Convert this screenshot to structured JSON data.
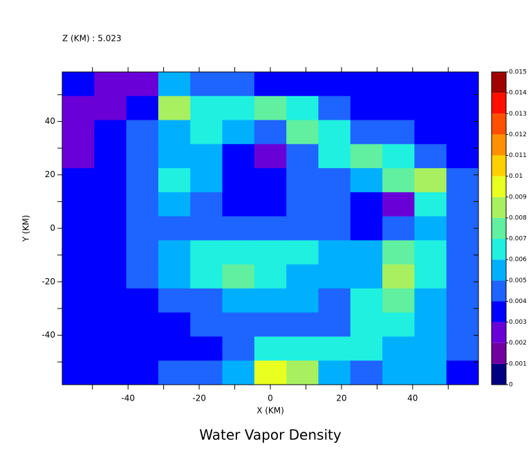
{
  "chart_data": {
    "type": "contour",
    "title": "Water Vapor Density",
    "subtitle": "Z (KM) : 5.023",
    "x_label": "X (KM)",
    "y_label": "Y (KM)",
    "x": [
      -54,
      -45,
      -36,
      -27,
      -18,
      -9,
      0,
      9,
      18,
      27,
      36,
      45,
      54
    ],
    "y": [
      54,
      45,
      36,
      27,
      18,
      9,
      0,
      -9,
      -18,
      -27,
      -36,
      -45,
      -54
    ],
    "z": [
      [
        0.0035,
        0.0025,
        0.0025,
        0.0055,
        0.0045,
        0.0045,
        0.0035,
        0.0035,
        0.0035,
        0.0035,
        0.0035,
        0.0035,
        0.0035
      ],
      [
        0.0025,
        0.0025,
        0.0035,
        0.0085,
        0.0065,
        0.0065,
        0.0075,
        0.0065,
        0.0045,
        0.0035,
        0.0035,
        0.0035,
        0.0035
      ],
      [
        0.0025,
        0.0035,
        0.0045,
        0.0055,
        0.0065,
        0.0055,
        0.0045,
        0.0075,
        0.0065,
        0.0045,
        0.0045,
        0.0035,
        0.0035
      ],
      [
        0.0025,
        0.0035,
        0.0045,
        0.0055,
        0.0055,
        0.0035,
        0.0025,
        0.0045,
        0.0065,
        0.0075,
        0.0065,
        0.0045,
        0.0035
      ],
      [
        0.0035,
        0.0035,
        0.0045,
        0.0065,
        0.0055,
        0.0035,
        0.0035,
        0.0045,
        0.0045,
        0.0055,
        0.0075,
        0.0085,
        0.0045
      ],
      [
        0.0035,
        0.0035,
        0.0045,
        0.0055,
        0.0045,
        0.0035,
        0.0035,
        0.0045,
        0.0045,
        0.0035,
        0.0025,
        0.0065,
        0.0045
      ],
      [
        0.0035,
        0.0035,
        0.0045,
        0.0045,
        0.0045,
        0.0045,
        0.0045,
        0.0045,
        0.0045,
        0.0035,
        0.0045,
        0.0055,
        0.0045
      ],
      [
        0.0035,
        0.0035,
        0.0045,
        0.0055,
        0.0065,
        0.0065,
        0.0065,
        0.0065,
        0.0055,
        0.0055,
        0.0075,
        0.0065,
        0.0045
      ],
      [
        0.0035,
        0.0035,
        0.0045,
        0.0055,
        0.0065,
        0.0075,
        0.0065,
        0.0055,
        0.0055,
        0.0055,
        0.0085,
        0.0065,
        0.0045
      ],
      [
        0.0035,
        0.0035,
        0.0035,
        0.0045,
        0.0045,
        0.0055,
        0.0055,
        0.0055,
        0.0045,
        0.0065,
        0.0075,
        0.0055,
        0.0045
      ],
      [
        0.0035,
        0.0035,
        0.0035,
        0.0035,
        0.0045,
        0.0045,
        0.0045,
        0.0045,
        0.0045,
        0.0065,
        0.0065,
        0.0055,
        0.0045
      ],
      [
        0.0035,
        0.0035,
        0.0035,
        0.0035,
        0.0035,
        0.0045,
        0.0065,
        0.0065,
        0.0065,
        0.0065,
        0.0055,
        0.0055,
        0.0045
      ],
      [
        0.0035,
        0.0035,
        0.0035,
        0.0045,
        0.0045,
        0.0055,
        0.0095,
        0.0085,
        0.0055,
        0.0045,
        0.0055,
        0.0055,
        0.0035
      ]
    ],
    "xlim": [
      -58.5,
      58.5
    ],
    "ylim": [
      -58.5,
      58.5
    ],
    "xticks": [
      -40,
      -20,
      0,
      20,
      40
    ],
    "yticks": [
      -40,
      -20,
      0,
      20,
      40
    ],
    "xminorticks": [
      -50,
      -30,
      -10,
      10,
      30,
      50
    ],
    "yminorticks": [
      -50,
      -30,
      -10,
      10,
      30,
      50
    ],
    "levels": [
      0,
      0.001,
      0.002,
      0.003,
      0.004,
      0.005,
      0.006,
      0.007,
      0.008,
      0.009,
      0.01,
      0.011,
      0.012,
      0.013,
      0.014,
      0.015
    ],
    "colors": [
      "#000080",
      "#7000a0",
      "#6a00d8",
      "#0000ff",
      "#1e64ff",
      "#00b0ff",
      "#20f0e0",
      "#60f0a0",
      "#a8f060",
      "#e8ff20",
      "#ffd000",
      "#ff9000",
      "#ff5000",
      "#ff1000",
      "#a00000"
    ]
  }
}
